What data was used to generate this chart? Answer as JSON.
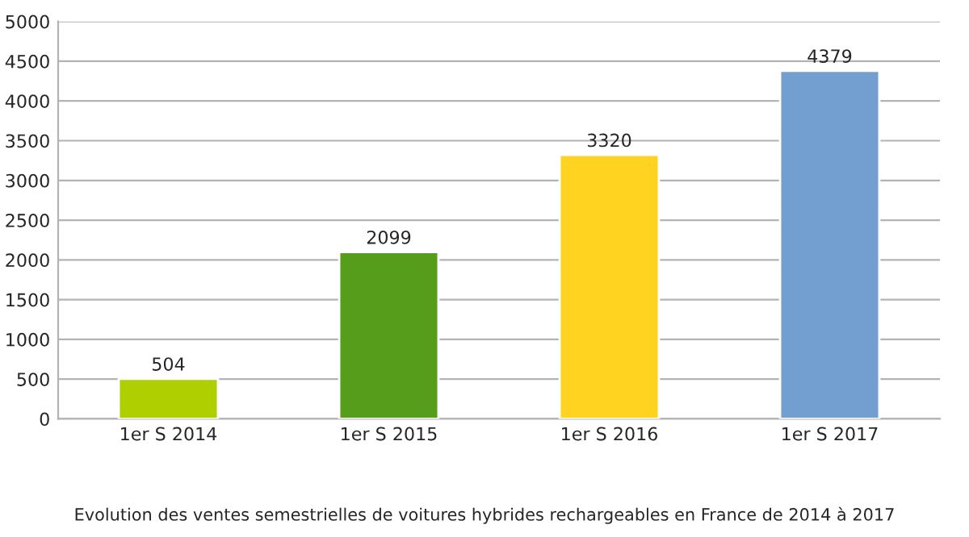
{
  "chart_data": {
    "type": "bar",
    "categories": [
      "1er S 2014",
      "1er S 2015",
      "1er S 2016",
      "1er S 2017"
    ],
    "values": [
      504,
      2099,
      3320,
      4379
    ],
    "colors": [
      "#b0cf00",
      "#579d1c",
      "#ffd320",
      "#729fcf"
    ],
    "ylim": [
      0,
      5000
    ],
    "yticks": [
      0,
      500,
      1000,
      1500,
      2000,
      2500,
      3000,
      3500,
      4000,
      4500,
      5000
    ],
    "grid": "y",
    "data_labels": true,
    "legend": false,
    "annotations": [
      "Evolution des ventes semestrielles de voitures hybrides rechargeables en France de 2014 à 2017"
    ]
  }
}
